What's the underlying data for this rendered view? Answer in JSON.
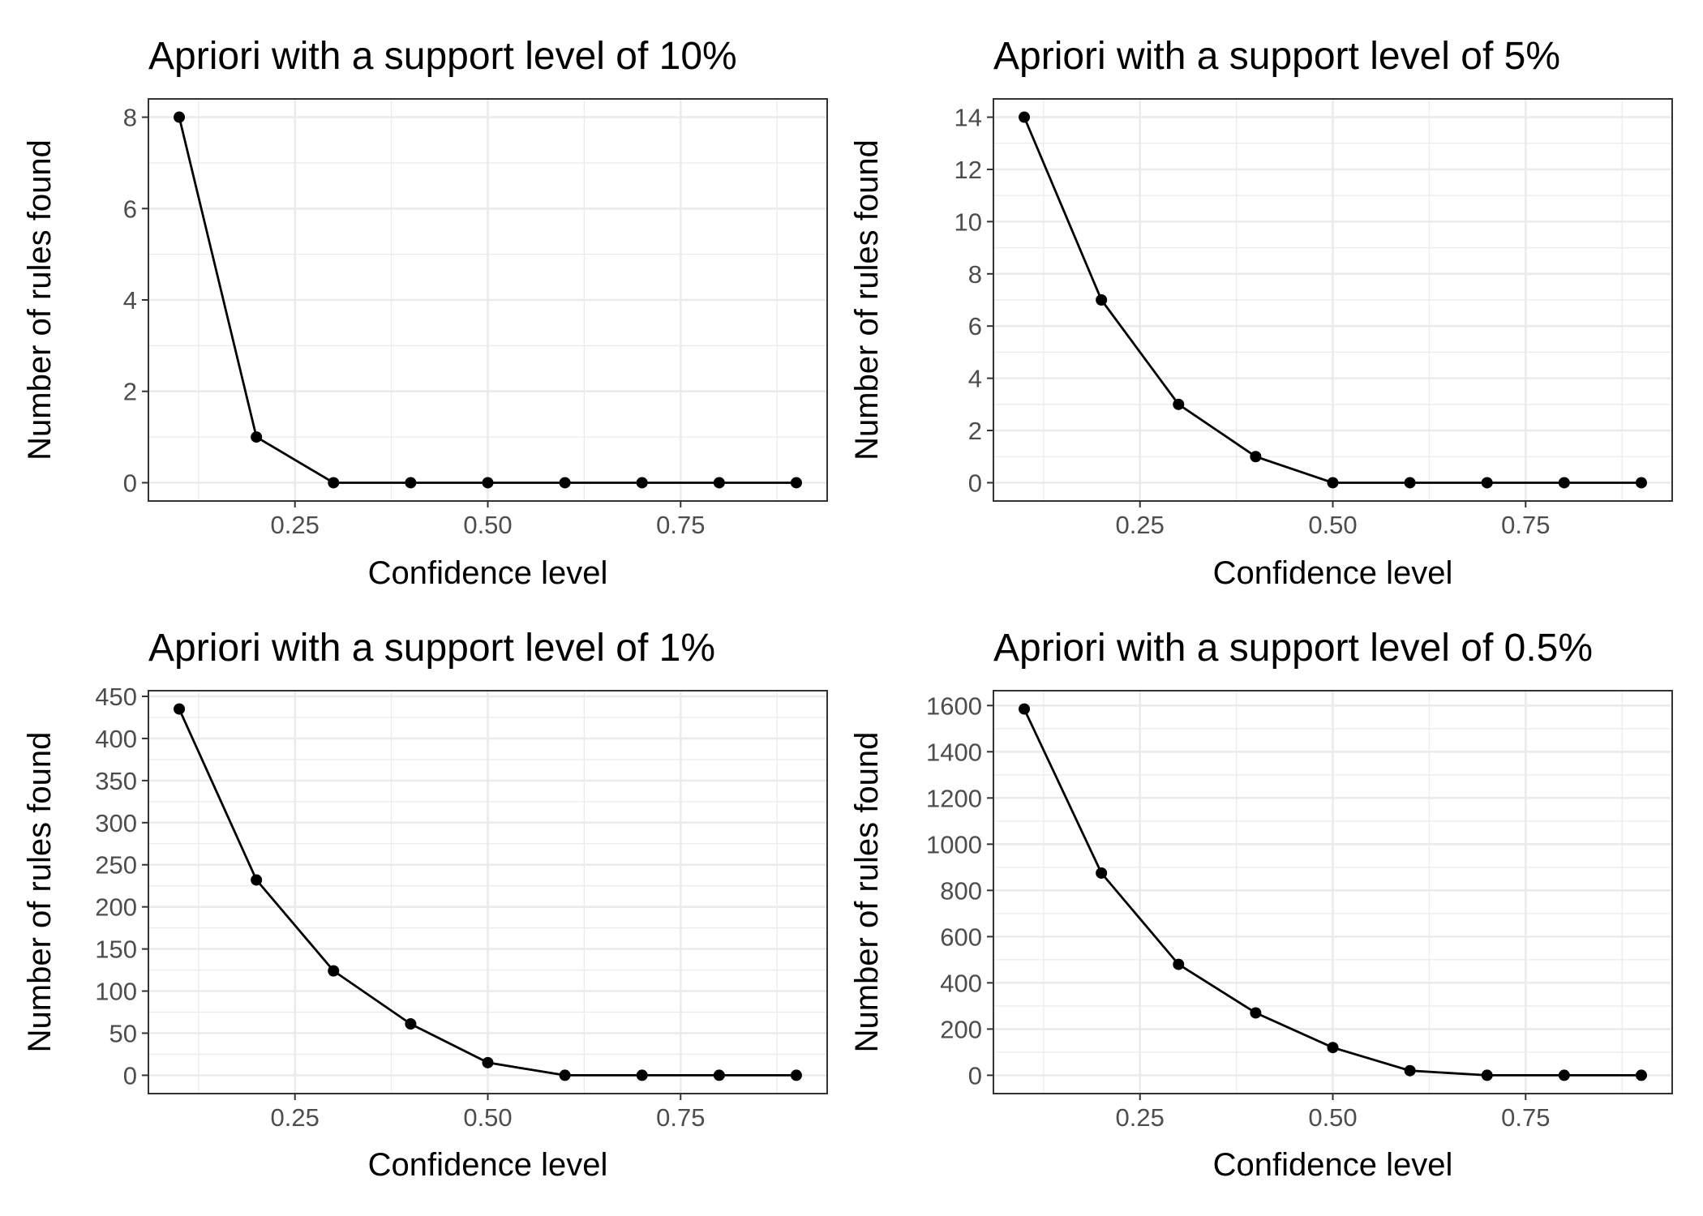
{
  "chart_data": [
    {
      "type": "line",
      "title": "Apriori with a support level of 10%",
      "xlabel": "Confidence level",
      "ylabel": "Number of rules found",
      "x": [
        0.1,
        0.2,
        0.3,
        0.4,
        0.5,
        0.6,
        0.7,
        0.8,
        0.9
      ],
      "values": [
        8,
        1,
        0,
        0,
        0,
        0,
        0,
        0,
        0
      ],
      "xlim": [
        0.06,
        0.94
      ],
      "ylim": [
        -0.4,
        8.4
      ],
      "xticks": [
        0.25,
        0.5,
        0.75
      ],
      "xtick_labels": [
        "0.25",
        "0.50",
        "0.75"
      ],
      "yticks": [
        0,
        2,
        4,
        6,
        8
      ],
      "ytick_labels": [
        "0",
        "2",
        "4",
        "6",
        "8"
      ],
      "grid": true,
      "legend": "none",
      "color": "#000000"
    },
    {
      "type": "line",
      "title": "Apriori with a support level of 5%",
      "xlabel": "Confidence level",
      "ylabel": "Number of rules found",
      "x": [
        0.1,
        0.2,
        0.3,
        0.4,
        0.5,
        0.6,
        0.7,
        0.8,
        0.9
      ],
      "values": [
        14,
        7,
        3,
        1,
        0,
        0,
        0,
        0,
        0
      ],
      "xlim": [
        0.06,
        0.94
      ],
      "ylim": [
        -0.7,
        14.7
      ],
      "xticks": [
        0.25,
        0.5,
        0.75
      ],
      "xtick_labels": [
        "0.25",
        "0.50",
        "0.75"
      ],
      "yticks": [
        0,
        2,
        4,
        6,
        8,
        10,
        12,
        14
      ],
      "ytick_labels": [
        "0",
        "2",
        "4",
        "6",
        "8",
        "10",
        "12",
        "14"
      ],
      "grid": true,
      "legend": "none",
      "color": "#000000"
    },
    {
      "type": "line",
      "title": "Apriori with a support level of 1%",
      "xlabel": "Confidence level",
      "ylabel": "Number of rules found",
      "x": [
        0.1,
        0.2,
        0.3,
        0.4,
        0.5,
        0.6,
        0.7,
        0.8,
        0.9
      ],
      "values": [
        435,
        232,
        124,
        61,
        15,
        0,
        0,
        0,
        0
      ],
      "xlim": [
        0.06,
        0.94
      ],
      "ylim": [
        -21.75,
        456.75
      ],
      "xticks": [
        0.25,
        0.5,
        0.75
      ],
      "xtick_labels": [
        "0.25",
        "0.50",
        "0.75"
      ],
      "yticks": [
        0,
        50,
        100,
        150,
        200,
        250,
        300,
        350,
        400,
        450
      ],
      "ytick_labels": [
        "0",
        "50",
        "100",
        "150",
        "200",
        "250",
        "300",
        "350",
        "400",
        "450"
      ],
      "grid": true,
      "legend": "none",
      "color": "#000000"
    },
    {
      "type": "line",
      "title": "Apriori with a support level of 0.5%",
      "xlabel": "Confidence level",
      "ylabel": "Number of rules found",
      "x": [
        0.1,
        0.2,
        0.3,
        0.4,
        0.5,
        0.6,
        0.7,
        0.8,
        0.9
      ],
      "values": [
        1585,
        875,
        480,
        270,
        120,
        20,
        0,
        0,
        0
      ],
      "xlim": [
        0.06,
        0.94
      ],
      "ylim": [
        -79.25,
        1664.25
      ],
      "xticks": [
        0.25,
        0.5,
        0.75
      ],
      "xtick_labels": [
        "0.25",
        "0.50",
        "0.75"
      ],
      "yticks": [
        0,
        200,
        400,
        600,
        800,
        1000,
        1200,
        1400,
        1600
      ],
      "ytick_labels": [
        "0",
        "200",
        "400",
        "600",
        "800",
        "1000",
        "1200",
        "1400",
        "1600"
      ],
      "grid": true,
      "legend": "none",
      "color": "#000000"
    }
  ]
}
